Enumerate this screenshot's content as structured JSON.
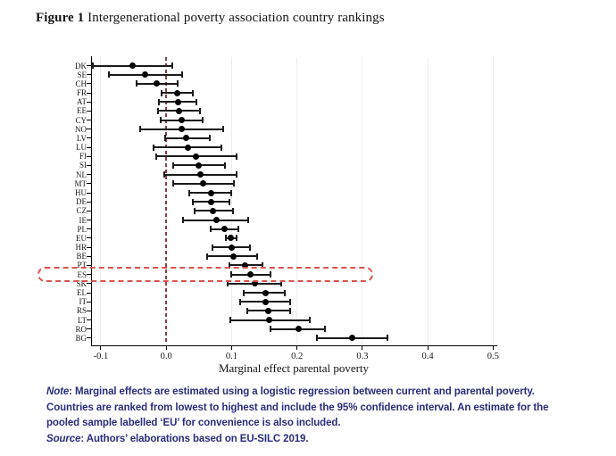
{
  "title": {
    "prefix": "Figure 1",
    "text": " Intergenerational poverty association country rankings"
  },
  "footnote": {
    "note_label": "Note",
    "note_text": ": Marginal effects are estimated using a logistic regression between current and parental poverty. Countries are ranked from lowest to highest and include the 95% confidence interval. An estimate for the pooled sample labelled ‘EU’ for convenience is also included.",
    "source_label": "Source",
    "source_text": ": Authors’ elaborations based on EU-SILC 2019."
  },
  "chart_data": {
    "type": "scatter",
    "subtype": "coefficient dot plot with 95% confidence intervals",
    "xlabel": "Marginal effect parental poverty",
    "ylabel": "",
    "xticks": [
      -0.1,
      0.0,
      0.1,
      0.2,
      0.3,
      0.4,
      0.5
    ],
    "xlim": [
      -0.115,
      0.505
    ],
    "grid": "faint vertical gridline at each x tick",
    "zero_line": {
      "x": 0.0,
      "style": "dashed",
      "color": "#8e3b44"
    },
    "highlight": {
      "category": "ES",
      "style": "dashed rounded rectangle",
      "color": "#d9534f"
    },
    "marker_color": "#000000",
    "categories": [
      "DK",
      "SE",
      "CH",
      "FR",
      "AT",
      "EE",
      "CY",
      "NO",
      "LV",
      "LU",
      "FI",
      "SI",
      "NL",
      "MT",
      "HU",
      "DE",
      "CZ",
      "IE",
      "PL",
      "EU",
      "HR",
      "BE",
      "PT",
      "ES",
      "SK",
      "EL",
      "IT",
      "RS",
      "LT",
      "RO",
      "BG"
    ],
    "series": [
      {
        "name": "estimate",
        "values": [
          -0.051,
          -0.032,
          -0.014,
          0.017,
          0.018,
          0.02,
          0.023,
          0.024,
          0.031,
          0.033,
          0.046,
          0.05,
          0.052,
          0.056,
          0.068,
          0.069,
          0.072,
          0.077,
          0.089,
          0.099,
          0.1,
          0.103,
          0.121,
          0.129,
          0.135,
          0.152,
          0.152,
          0.156,
          0.158,
          0.202,
          0.285
        ]
      },
      {
        "name": "ci_low",
        "values": [
          -0.112,
          -0.088,
          -0.046,
          -0.007,
          -0.011,
          -0.012,
          -0.009,
          -0.04,
          -0.002,
          -0.019,
          -0.015,
          0.011,
          -0.003,
          0.01,
          0.035,
          0.041,
          0.043,
          0.026,
          0.068,
          0.091,
          0.071,
          0.063,
          0.097,
          0.1,
          0.094,
          0.119,
          0.113,
          0.124,
          0.098,
          0.16,
          0.231
        ]
      },
      {
        "name": "ci_high",
        "values": [
          0.009,
          0.024,
          0.017,
          0.041,
          0.046,
          0.052,
          0.056,
          0.087,
          0.066,
          0.085,
          0.107,
          0.09,
          0.108,
          0.103,
          0.1,
          0.096,
          0.102,
          0.126,
          0.111,
          0.108,
          0.128,
          0.139,
          0.147,
          0.159,
          0.176,
          0.181,
          0.19,
          0.189,
          0.219,
          0.243,
          0.338
        ]
      }
    ]
  }
}
